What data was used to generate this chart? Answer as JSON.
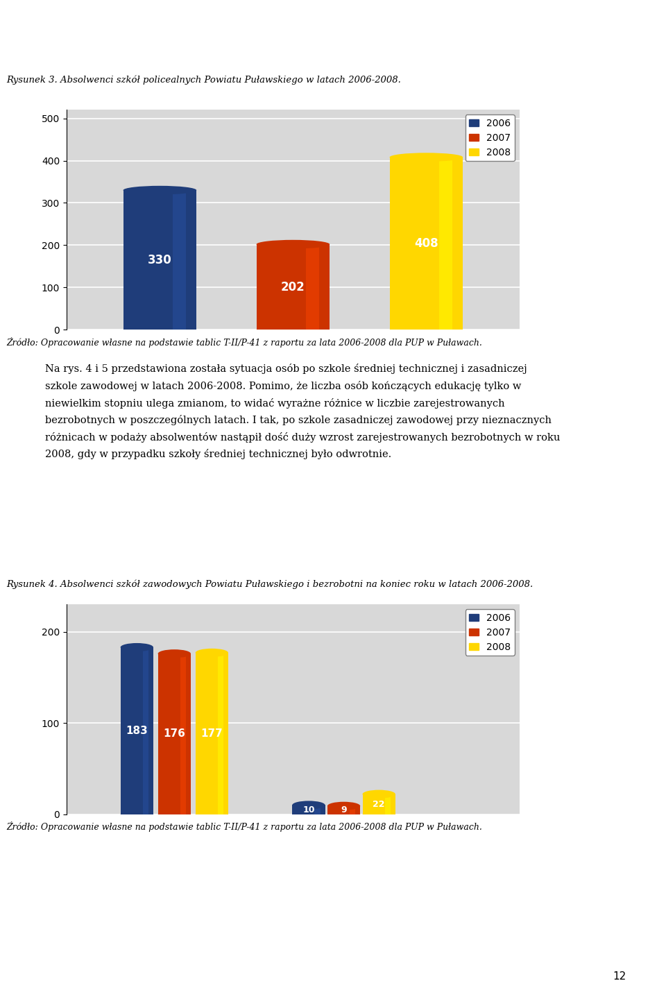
{
  "chart1": {
    "title": "Rysunek 3. Absolwenci szkół policealnych Powiatu Puławskiego w latach 2006-2008.",
    "values": [
      330,
      202,
      408
    ],
    "colors": [
      "#1F3D7A",
      "#CC3300",
      "#FFD700"
    ],
    "labels": [
      "2006",
      "2007",
      "2008"
    ],
    "yticks": [
      0,
      100,
      200,
      300,
      400,
      500
    ],
    "ylim": [
      0,
      520
    ],
    "source": "Źródło: Opracowanie własne na podstawie tablic T-II/P-41 z raportu za lata 2006-2008 dla PUP w Puławach."
  },
  "text_body": "Na rys. 4 i 5 przedstawiona została sytuacja osób po szkole średniej technicznej i zasadniczej szkole zawodowej w latach 2006-2008. Pomimo, że liczba osób kończących edukację tylko w niewielkim stopniu ulega zmianom, to widać wyrażne różnice w liczbie zarejestrowanych bezrobotnych w poszczególnych latach. I tak, po szkole zasadniczej zawodowej przy nieznacznych różnicach w podaży absolwentów nastąpił dość duży wzrost zarejestrowanych bezrobotnych w roku 2008, gdy w przypadku szkoły średniej technicznej było odwrotnie.",
  "chart2": {
    "title": "Rysunek 4. Absolwenci szkół zawodowych Powiatu Puławskiego i bezrobotni na koniec roku w latach 2006-2008.",
    "group1_values": [
      183,
      176,
      177
    ],
    "group2_values": [
      10,
      9,
      22
    ],
    "colors": [
      "#1F3D7A",
      "#CC3300",
      "#FFD700"
    ],
    "labels": [
      "2006",
      "2007",
      "2008"
    ],
    "yticks": [
      0,
      100,
      200
    ],
    "ylim": [
      0,
      230
    ],
    "source": "Źródło: Opracowanie własne na podstawie tablic T-II/P-41 z raportu za lata 2006-2008 dla PUP w Puławach."
  },
  "page_number": "12"
}
